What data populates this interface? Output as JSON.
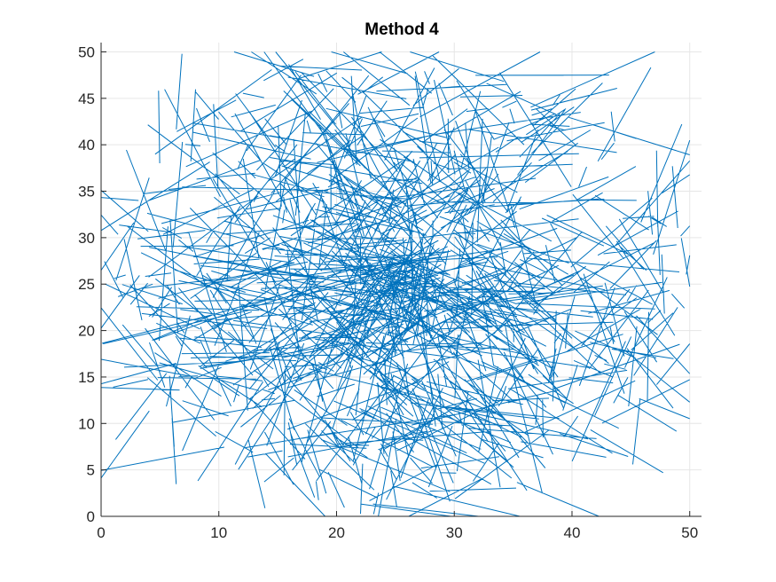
{
  "chart_data": {
    "type": "line",
    "title": "Method 4",
    "xlabel": "",
    "ylabel": "",
    "xlim": [
      0,
      51
    ],
    "ylim": [
      0,
      51
    ],
    "xticks": [
      "0",
      "10",
      "20",
      "30",
      "40",
      "50"
    ],
    "yticks": [
      "0",
      "5",
      "10",
      "15",
      "20",
      "25",
      "30",
      "35",
      "40",
      "45",
      "50"
    ],
    "grid": true,
    "legend": "none",
    "line_color": "#0072BD",
    "segment_count": 1000,
    "center": [
      25,
      25
    ],
    "spread_radius": 25,
    "segment_length_range": [
      1,
      14
    ],
    "description_note": ""
  }
}
